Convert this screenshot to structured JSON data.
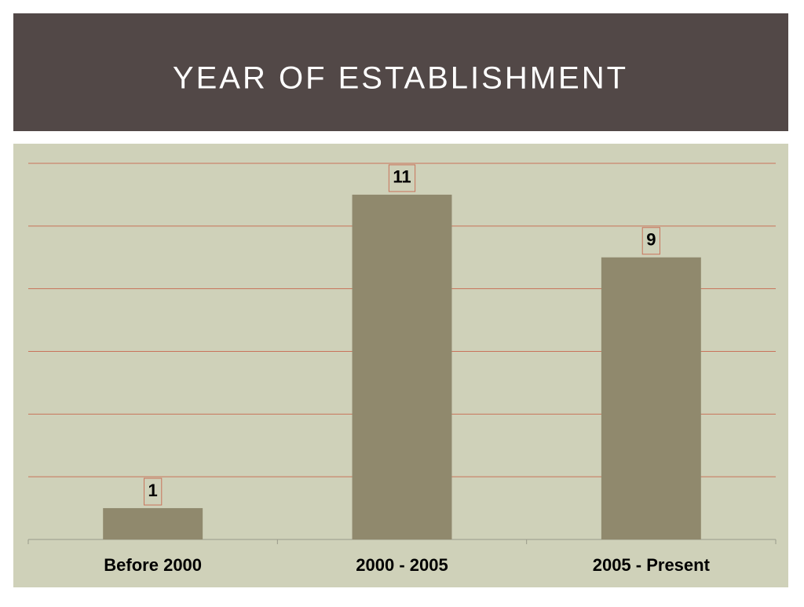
{
  "chart_data": {
    "type": "bar",
    "title": "YEAR OF ESTABLISHMENT",
    "categories": [
      "Before 2000",
      "2000 - 2005",
      "2005 - Present"
    ],
    "values": [
      1,
      11,
      9
    ],
    "color": "#90896d",
    "ylim": [
      0,
      12
    ],
    "yticks": [
      0,
      2,
      4,
      6,
      8,
      10,
      12
    ],
    "grid": true
  }
}
